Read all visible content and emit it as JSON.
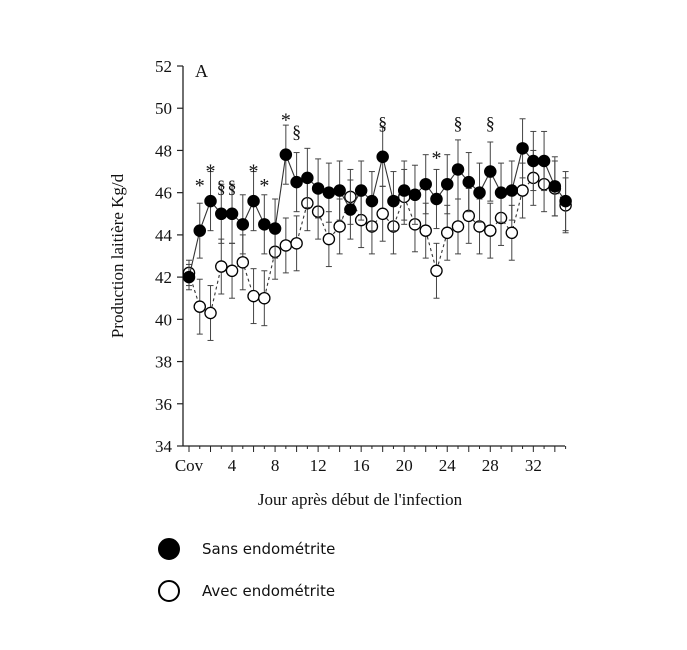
{
  "chart_data": {
    "type": "line",
    "panel_label": "A",
    "ylabel": "Production laitière Kg/d",
    "xlabel": "Jour après début de l'infection",
    "ylim": [
      34,
      52
    ],
    "yticks": [
      34,
      36,
      38,
      40,
      42,
      44,
      46,
      48,
      50,
      52
    ],
    "xlim": [
      0,
      35
    ],
    "xticks": [
      {
        "x": 0,
        "label": "Cov"
      },
      {
        "x": 4,
        "label": "4"
      },
      {
        "x": 8,
        "label": "8"
      },
      {
        "x": 12,
        "label": "12"
      },
      {
        "x": 16,
        "label": "16"
      },
      {
        "x": 20,
        "label": "20"
      },
      {
        "x": 24,
        "label": "24"
      },
      {
        "x": 28,
        "label": "28"
      },
      {
        "x": 32,
        "label": "32"
      }
    ],
    "x": [
      0,
      1,
      2,
      3,
      4,
      5,
      6,
      7,
      8,
      9,
      10,
      11,
      12,
      13,
      14,
      15,
      16,
      17,
      18,
      19,
      20,
      21,
      22,
      23,
      24,
      25,
      26,
      27,
      28,
      29,
      30,
      31,
      32,
      33,
      34,
      35
    ],
    "series": [
      {
        "name": "Sans endométrite",
        "marker": "filled",
        "line": "solid",
        "color": "#000000",
        "values": [
          42.0,
          44.2,
          45.6,
          45.0,
          45.0,
          44.5,
          45.6,
          44.5,
          44.3,
          47.8,
          46.5,
          46.7,
          46.2,
          46.0,
          46.1,
          45.2,
          46.1,
          45.6,
          47.7,
          45.6,
          46.1,
          45.9,
          46.4,
          45.7,
          46.4,
          47.1,
          46.5,
          46.0,
          47.0,
          46.0,
          46.1,
          48.1,
          47.5,
          47.5,
          46.3,
          45.6
        ],
        "error": [
          0.6,
          1.3,
          1.4,
          1.4,
          1.4,
          1.4,
          1.4,
          1.4,
          1.4,
          1.4,
          1.4,
          1.4,
          1.4,
          1.4,
          1.4,
          1.4,
          1.4,
          1.4,
          1.4,
          1.4,
          1.4,
          1.4,
          1.4,
          1.4,
          1.4,
          1.4,
          1.4,
          1.4,
          1.4,
          1.4,
          1.4,
          1.4,
          1.4,
          1.4,
          1.4,
          1.4
        ]
      },
      {
        "name": "Avec endométrite",
        "marker": "open",
        "line": "dashed",
        "color": "#000000",
        "values": [
          42.2,
          40.6,
          40.3,
          42.5,
          42.3,
          42.7,
          41.1,
          41.0,
          43.2,
          43.5,
          43.6,
          45.5,
          45.1,
          43.8,
          44.4,
          45.8,
          44.7,
          44.4,
          45.0,
          44.4,
          45.8,
          44.5,
          44.2,
          42.3,
          44.1,
          44.4,
          44.9,
          44.4,
          44.2,
          44.8,
          44.1,
          46.1,
          46.7,
          46.4,
          46.2,
          45.4
        ],
        "error": [
          0.6,
          1.3,
          1.3,
          1.3,
          1.3,
          1.3,
          1.3,
          1.3,
          1.3,
          1.3,
          1.3,
          1.3,
          1.3,
          1.3,
          1.3,
          1.3,
          1.3,
          1.3,
          1.3,
          1.3,
          1.3,
          1.3,
          1.3,
          1.3,
          1.3,
          1.3,
          1.3,
          1.3,
          1.3,
          1.3,
          1.3,
          1.3,
          1.3,
          1.3,
          1.3,
          1.3
        ]
      }
    ],
    "annotations": [
      {
        "x": 1,
        "y": 46.5,
        "text": "*"
      },
      {
        "x": 2,
        "y": 47.2,
        "text": "*"
      },
      {
        "x": 3,
        "y": 46.3,
        "text": "§"
      },
      {
        "x": 4,
        "y": 46.3,
        "text": "§"
      },
      {
        "x": 6,
        "y": 47.2,
        "text": "*"
      },
      {
        "x": 7,
        "y": 46.5,
        "text": "*"
      },
      {
        "x": 9,
        "y": 49.6,
        "text": "*"
      },
      {
        "x": 10,
        "y": 48.9,
        "text": "§"
      },
      {
        "x": 18,
        "y": 49.3,
        "text": "§"
      },
      {
        "x": 23,
        "y": 47.8,
        "text": "*"
      },
      {
        "x": 25,
        "y": 49.3,
        "text": "§"
      },
      {
        "x": 28,
        "y": 49.3,
        "text": "§"
      }
    ],
    "legend_position": "bottom-left",
    "grid": false
  },
  "legend": {
    "items": [
      {
        "label": "Sans endométrite",
        "marker": "filled"
      },
      {
        "label": "Avec endométrite",
        "marker": "open"
      }
    ]
  }
}
